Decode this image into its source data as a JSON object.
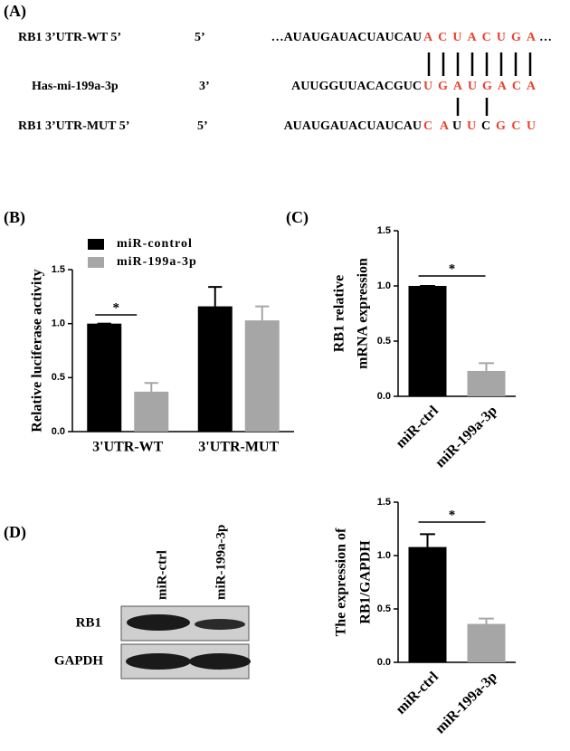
{
  "panels": {
    "a": "(A)",
    "b": "(B)",
    "c": "(C)",
    "d": "(D)"
  },
  "alignment": {
    "rows": [
      {
        "label": "RB1 3’UTR-WT 5’",
        "end": "5’",
        "prefix": "…AUAUGAUACUAUCAU",
        "segments": [
          {
            "text": "ACUACUGA",
            "color": "#e8432e"
          },
          {
            "text": "…",
            "color": "#000000"
          }
        ]
      },
      {
        "label": "Has-mi-199a-3p",
        "end": "3’",
        "prefix": "AUUGGUUACACGUC",
        "segments": [
          {
            "text": "UGAUGACA",
            "color": "#e8432e"
          }
        ]
      },
      {
        "label": "RB1 3’UTR-MUT 5’",
        "end": "5’",
        "prefix": "AUAUGAUACUAUCAU",
        "segments": [
          {
            "text": "CA",
            "color": "#e8432e"
          },
          {
            "text": "U",
            "color": "#000000"
          },
          {
            "text": "U",
            "color": "#e8432e"
          },
          {
            "text": "C",
            "color": "#000000"
          },
          {
            "text": "GCU",
            "color": "#e8432e"
          }
        ]
      }
    ]
  },
  "blot": {
    "lanes": [
      "miR-ctrl",
      "miR-199a-3p"
    ],
    "rows": [
      "RB1",
      "GAPDH"
    ]
  },
  "chart_data": [
    {
      "type": "bar",
      "categories": [
        "3'UTR-WT",
        "3'UTR-MUT"
      ],
      "series": [
        {
          "name": "miR-control",
          "color": "#000000",
          "values": [
            1.0,
            1.16
          ],
          "errors": [
            0,
            0.18
          ]
        },
        {
          "name": "miR-199a-3p",
          "color": "#a6a6a6",
          "values": [
            0.37,
            1.03
          ],
          "errors": [
            0.08,
            0.13
          ]
        }
      ],
      "ylabel": [
        "Relative luciferase activity"
      ],
      "annotation": "*",
      "ylim": [
        0,
        1.5
      ],
      "yticks": [
        {
          "value": 0,
          "label": "0.0"
        },
        0.5,
        {
          "value": 1,
          "label": "1.0"
        },
        1.5
      ]
    },
    {
      "type": "bar",
      "categories": [
        "miR-ctrl",
        "miR-199a-3p"
      ],
      "values": [
        1.0,
        0.23
      ],
      "errors": [
        0,
        0.07
      ],
      "colors": [
        "#000000",
        "#a6a6a6"
      ],
      "ylabel": [
        "RB1 relative",
        "mRNA expression"
      ],
      "annotation": "*",
      "ylim": [
        0,
        1.5
      ],
      "yticks": [
        {
          "value": 0,
          "label": "0.0"
        },
        0.5,
        {
          "value": 1,
          "label": "1.0"
        },
        1.5
      ]
    },
    {
      "type": "bar",
      "categories": [
        "miR-ctrl",
        "miR-199a-3p"
      ],
      "values": [
        1.08,
        0.36
      ],
      "errors": [
        0.12,
        0.05
      ],
      "colors": [
        "#000000",
        "#a6a6a6"
      ],
      "ylabel": [
        "The expression of",
        "RB1/GAPDH"
      ],
      "annotation": "*",
      "ylim": [
        0,
        1.5
      ],
      "yticks": [
        {
          "value": 0,
          "label": "0.0"
        },
        0.5,
        {
          "value": 1,
          "label": "1.0"
        },
        1.5
      ]
    }
  ]
}
